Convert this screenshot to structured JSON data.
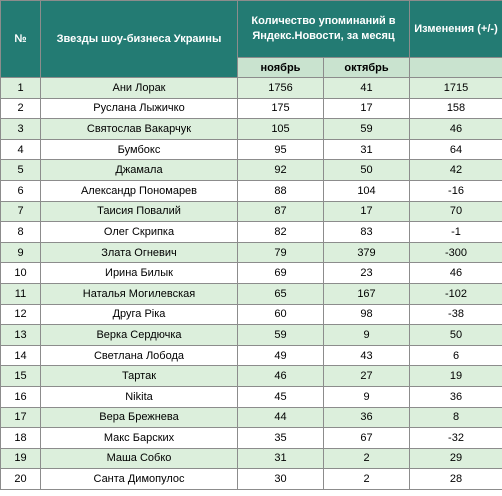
{
  "headers": {
    "num": "№",
    "name": "Звезды шоу-бизнеса Украины",
    "mentions": "Количество упоминаний в Яндекс.Новости, за месяц",
    "change": "Изменения (+/-)",
    "nov": "ноябрь",
    "oct": "октябрь"
  },
  "rows": [
    {
      "n": "1",
      "name": "Ани Лорак",
      "nov": "1756",
      "oct": "41",
      "chg": "1715"
    },
    {
      "n": "2",
      "name": "Руслана Лыжичко",
      "nov": "175",
      "oct": "17",
      "chg": "158"
    },
    {
      "n": "3",
      "name": "Святослав Вакарчук",
      "nov": "105",
      "oct": "59",
      "chg": "46"
    },
    {
      "n": "4",
      "name": "Бумбокс",
      "nov": "95",
      "oct": "31",
      "chg": "64"
    },
    {
      "n": "5",
      "name": "Джамала",
      "nov": "92",
      "oct": "50",
      "chg": "42"
    },
    {
      "n": "6",
      "name": "Александр Пономарев",
      "nov": "88",
      "oct": "104",
      "chg": "-16"
    },
    {
      "n": "7",
      "name": "Таисия Повалий",
      "nov": "87",
      "oct": "17",
      "chg": "70"
    },
    {
      "n": "8",
      "name": "Олег Скрипка",
      "nov": "82",
      "oct": "83",
      "chg": "-1"
    },
    {
      "n": "9",
      "name": "Злата Огневич",
      "nov": "79",
      "oct": "379",
      "chg": "-300"
    },
    {
      "n": "10",
      "name": "Ирина Билык",
      "nov": "69",
      "oct": "23",
      "chg": "46"
    },
    {
      "n": "11",
      "name": "Наталья Могилевская",
      "nov": "65",
      "oct": "167",
      "chg": "-102"
    },
    {
      "n": "12",
      "name": "Друга Ріка",
      "nov": "60",
      "oct": "98",
      "chg": "-38"
    },
    {
      "n": "13",
      "name": "Верка Сердючка",
      "nov": "59",
      "oct": "9",
      "chg": "50"
    },
    {
      "n": "14",
      "name": "Светлана Лобода",
      "nov": "49",
      "oct": "43",
      "chg": "6"
    },
    {
      "n": "15",
      "name": "Тартак",
      "nov": "46",
      "oct": "27",
      "chg": "19"
    },
    {
      "n": "16",
      "name": "Nikita",
      "nov": "45",
      "oct": "9",
      "chg": "36"
    },
    {
      "n": "17",
      "name": "Вера Брежнева",
      "nov": "44",
      "oct": "36",
      "chg": "8"
    },
    {
      "n": "18",
      "name": "Макс Барских",
      "nov": "35",
      "oct": "67",
      "chg": "-32"
    },
    {
      "n": "19",
      "name": "Маша Собко",
      "nov": "31",
      "oct": "2",
      "chg": "29"
    },
    {
      "n": "20",
      "name": "Санта Димопулос",
      "nov": "30",
      "oct": "2",
      "chg": "28"
    }
  ]
}
